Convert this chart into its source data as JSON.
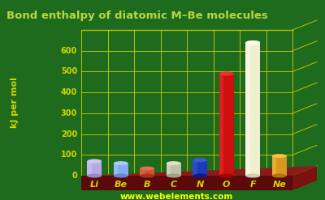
{
  "title": "Bond enthalpy of diatomic M–Be molecules",
  "ylabel": "kJ per mol",
  "watermark": "www.webelements.com",
  "background_color": "#1e6b1e",
  "elements": [
    "Li",
    "Be",
    "B",
    "C",
    "N",
    "O",
    "F",
    "Ne"
  ],
  "values": [
    70,
    60,
    35,
    60,
    75,
    490,
    640,
    95
  ],
  "bar_colors": [
    "#b8a8e8",
    "#88aaee",
    "#cc5530",
    "#c0c0a8",
    "#1c3ab8",
    "#cc1010",
    "#f0f0d0",
    "#d89820"
  ],
  "bar_top_colors": [
    "#d0c8f8",
    "#aaccff",
    "#e07050",
    "#e0e0c8",
    "#3c5ad8",
    "#ee3030",
    "#fffff0",
    "#f8c040"
  ],
  "bar_side_colors": [
    "#9888c8",
    "#6888cc",
    "#aa3318",
    "#a0a088",
    "#0c1a88",
    "#aa0000",
    "#d0d0b0",
    "#b07808"
  ],
  "ylim": [
    0,
    700
  ],
  "yticks": [
    0,
    100,
    200,
    300,
    400,
    500,
    600
  ],
  "title_color": "#b8d840",
  "title_fontsize": 9.5,
  "tick_color": "#d4d400",
  "label_color": "#d4d400",
  "grid_color": "#c8c800",
  "watermark_color": "#ffff00",
  "platform_color": "#7a1010",
  "platform_top_color": "#8b1a1a",
  "platform_front_color": "#5a0a0a"
}
